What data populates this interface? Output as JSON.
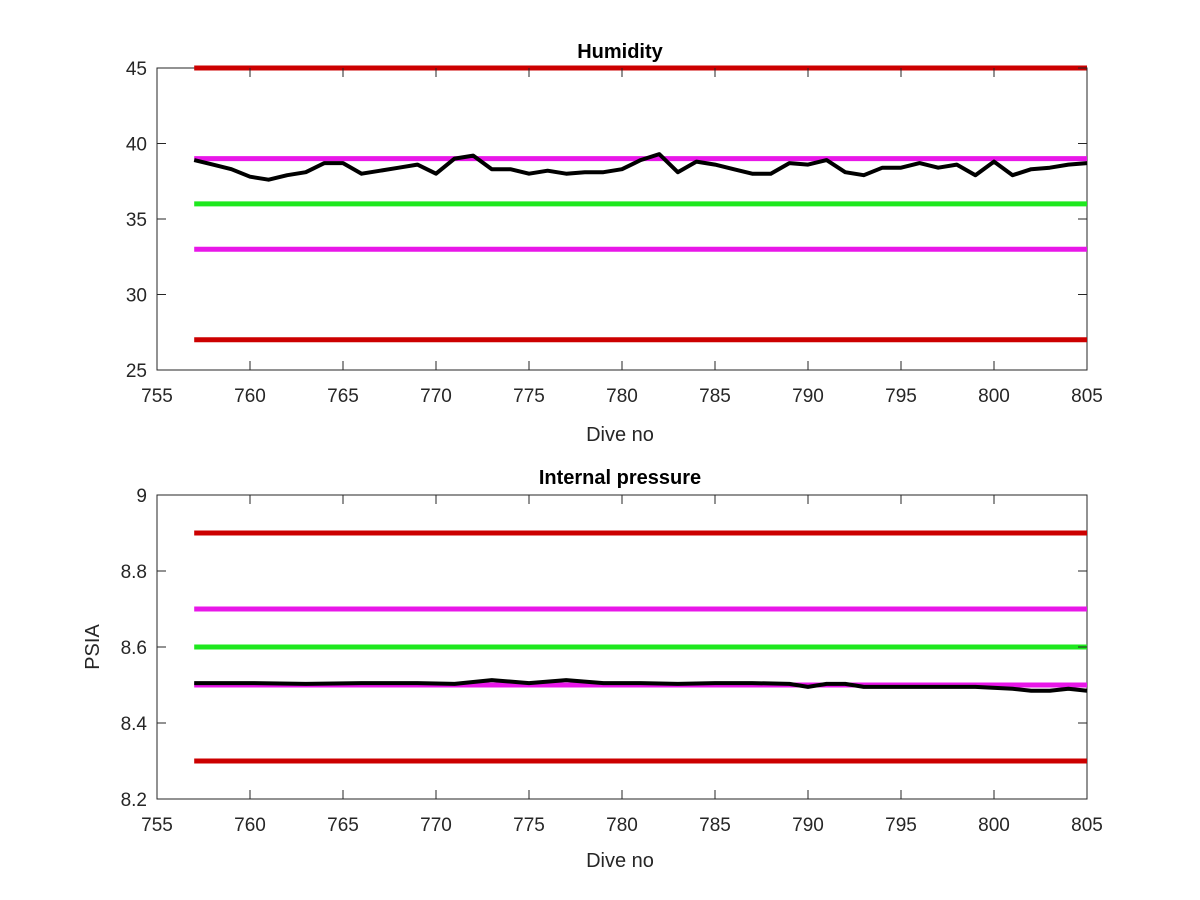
{
  "chart_data": [
    {
      "type": "line",
      "title": "Humidity",
      "xlabel": "Dive no",
      "ylabel": "",
      "xlim": [
        755,
        805
      ],
      "ylim": [
        25,
        45
      ],
      "xticks": [
        "755",
        "760",
        "765",
        "770",
        "775",
        "780",
        "785",
        "790",
        "795",
        "800",
        "805"
      ],
      "yticks": [
        "25",
        "30",
        "35",
        "40",
        "45"
      ],
      "grid": false,
      "series": [
        {
          "color": "#000000",
          "x": [
            757,
            758,
            759,
            760,
            761,
            762,
            763,
            764,
            765,
            766,
            767,
            768,
            769,
            770,
            771,
            772,
            773,
            774,
            775,
            776,
            777,
            778,
            779,
            780,
            781,
            782,
            783,
            784,
            785,
            786,
            787,
            788,
            789,
            790,
            791,
            792,
            793,
            794,
            795,
            796,
            797,
            798,
            799,
            800,
            801,
            802,
            803,
            804,
            805
          ],
          "values": [
            38.9,
            38.6,
            38.3,
            37.8,
            37.6,
            37.9,
            38.1,
            38.7,
            38.7,
            38.0,
            38.2,
            38.4,
            38.6,
            38.0,
            39.0,
            39.2,
            38.3,
            38.3,
            38.0,
            38.2,
            38.0,
            38.1,
            38.1,
            38.3,
            38.9,
            39.3,
            38.1,
            38.8,
            38.6,
            38.3,
            38.0,
            38.0,
            38.7,
            38.6,
            38.9,
            38.1,
            37.9,
            38.4,
            38.4,
            38.7,
            38.4,
            38.6,
            37.9,
            38.8,
            37.9,
            38.3,
            38.4,
            38.6,
            38.7
          ]
        }
      ],
      "hlines": [
        {
          "y": 45,
          "color": "#cc0000"
        },
        {
          "y": 39,
          "color": "#e817e8"
        },
        {
          "y": 36,
          "color": "#1ee81e"
        },
        {
          "y": 33,
          "color": "#e817e8"
        },
        {
          "y": 27,
          "color": "#cc0000"
        }
      ],
      "hline_xrange": [
        757,
        805
      ]
    },
    {
      "type": "line",
      "title": "Internal pressure",
      "xlabel": "Dive no",
      "ylabel": "PSIA",
      "xlim": [
        755,
        805
      ],
      "ylim": [
        8.2,
        9.0
      ],
      "xticks": [
        "755",
        "760",
        "765",
        "770",
        "775",
        "780",
        "785",
        "790",
        "795",
        "800",
        "805"
      ],
      "yticks": [
        "8.2",
        "8.4",
        "8.6",
        "8.8",
        "9"
      ],
      "grid": false,
      "series": [
        {
          "color": "#000000",
          "x": [
            757,
            760,
            763,
            766,
            769,
            771,
            773,
            775,
            777,
            779,
            781,
            783,
            785,
            787,
            789,
            790,
            791,
            792,
            793,
            795,
            797,
            799,
            801,
            802,
            803,
            804,
            805
          ],
          "values": [
            8.505,
            8.505,
            8.503,
            8.505,
            8.505,
            8.503,
            8.513,
            8.505,
            8.513,
            8.505,
            8.505,
            8.503,
            8.505,
            8.505,
            8.503,
            8.495,
            8.503,
            8.503,
            8.495,
            8.495,
            8.495,
            8.495,
            8.49,
            8.485,
            8.485,
            8.49,
            8.485
          ]
        }
      ],
      "hlines": [
        {
          "y": 8.9,
          "color": "#cc0000"
        },
        {
          "y": 8.7,
          "color": "#e817e8"
        },
        {
          "y": 8.6,
          "color": "#1ee81e"
        },
        {
          "y": 8.5,
          "color": "#e817e8"
        },
        {
          "y": 8.3,
          "color": "#cc0000"
        }
      ],
      "hline_xrange": [
        757,
        805
      ]
    }
  ]
}
